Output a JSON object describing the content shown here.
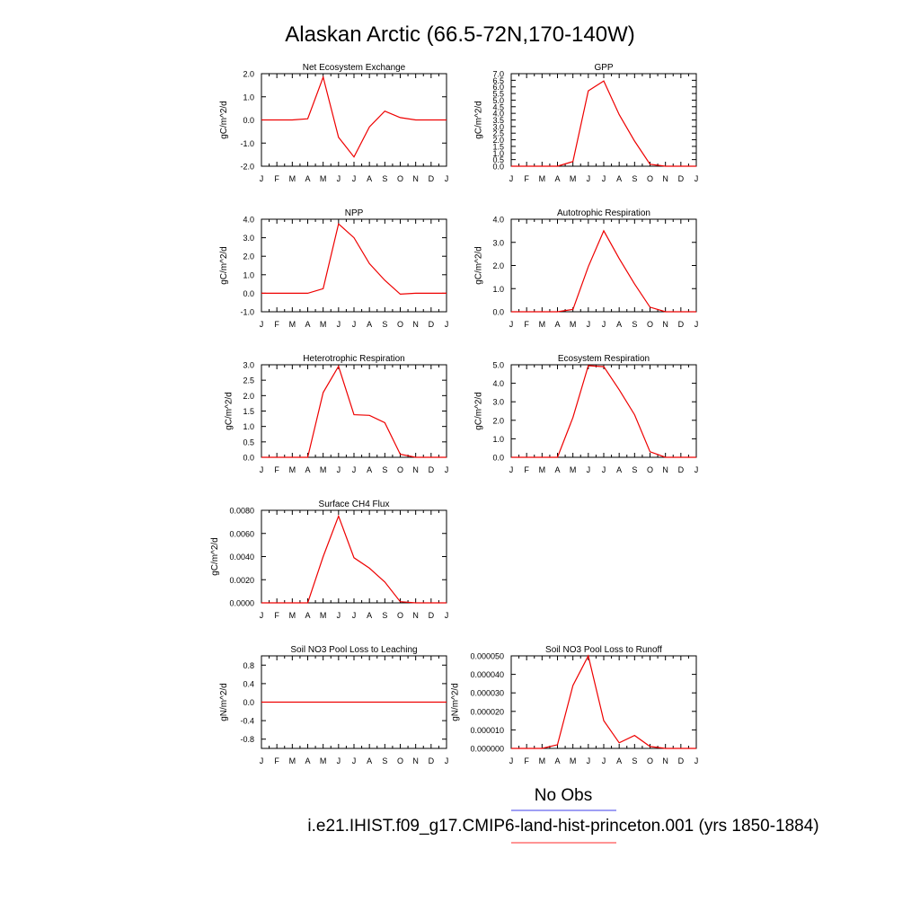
{
  "figure": {
    "title": "Alaskan Arctic (66.5-72N,170-140W)",
    "legend": {
      "obs_label": "No Obs",
      "obs_color": "#6666ee",
      "model_label": "i.e21.IHIST.f09_g17.CMIP6-land-hist-princeton.001 (yrs 1850-1884)",
      "model_color": "#ff5555"
    }
  },
  "chart_data": [
    {
      "type": "line",
      "title": "Net Ecosystem Exchange",
      "ylabel": "gC/m^2/d",
      "x": [
        "J",
        "F",
        "M",
        "A",
        "M",
        "J",
        "J",
        "A",
        "S",
        "O",
        "N",
        "D",
        "J"
      ],
      "ylim": [
        -2.0,
        2.0
      ],
      "yticks": [
        -2.0,
        -1.0,
        0.0,
        1.0,
        2.0
      ],
      "ytick_labels": [
        "-2.0",
        "-1.0",
        "0.0",
        "1.0",
        "2.0"
      ],
      "series": [
        {
          "color": "#ee0000",
          "values": [
            0.0,
            0.0,
            0.0,
            0.05,
            1.85,
            -0.75,
            -1.6,
            -0.3,
            0.38,
            0.1,
            0.0,
            0.0,
            0.0
          ]
        }
      ]
    },
    {
      "type": "line",
      "title": "GPP",
      "ylabel": "gC/m^2/d",
      "x": [
        "J",
        "F",
        "M",
        "A",
        "M",
        "J",
        "J",
        "A",
        "S",
        "O",
        "N",
        "D",
        "J"
      ],
      "ylim": [
        0.0,
        7.0
      ],
      "yticks": [
        0.0,
        0.5,
        1.0,
        1.5,
        2.0,
        2.5,
        3.0,
        3.5,
        4.0,
        4.5,
        5.0,
        5.5,
        6.0,
        6.5,
        7.0
      ],
      "ytick_labels": [
        "0.0",
        "0.5",
        "1.0",
        "1.5",
        "2.0",
        "2.5",
        "3.0",
        "3.5",
        "4.0",
        "4.5",
        "5.0",
        "5.5",
        "6.0",
        "6.5",
        "7.0"
      ],
      "series": [
        {
          "color": "#ee0000",
          "values": [
            0.0,
            0.0,
            0.0,
            0.0,
            0.35,
            5.7,
            6.45,
            3.9,
            1.9,
            0.15,
            0.0,
            0.0,
            0.0
          ]
        }
      ]
    },
    {
      "type": "line",
      "title": "NPP",
      "ylabel": "gC/m^2/d",
      "x": [
        "J",
        "F",
        "M",
        "A",
        "M",
        "J",
        "J",
        "A",
        "S",
        "O",
        "N",
        "D",
        "J"
      ],
      "ylim": [
        -1.0,
        4.0
      ],
      "yticks": [
        -1.0,
        0.0,
        1.0,
        2.0,
        3.0,
        4.0
      ],
      "ytick_labels": [
        "-1.0",
        "0.0",
        "1.0",
        "2.0",
        "3.0",
        "4.0"
      ],
      "series": [
        {
          "color": "#ee0000",
          "values": [
            0.0,
            0.0,
            0.0,
            0.0,
            0.25,
            3.75,
            3.0,
            1.6,
            0.7,
            -0.05,
            0.0,
            0.0,
            0.0
          ]
        }
      ]
    },
    {
      "type": "line",
      "title": "Autotrophic Respiration",
      "ylabel": "gC/m^2/d",
      "x": [
        "J",
        "F",
        "M",
        "A",
        "M",
        "J",
        "J",
        "A",
        "S",
        "O",
        "N",
        "D",
        "J"
      ],
      "ylim": [
        0.0,
        4.0
      ],
      "yticks": [
        0.0,
        1.0,
        2.0,
        3.0,
        4.0
      ],
      "ytick_labels": [
        "0.0",
        "1.0",
        "2.0",
        "3.0",
        "4.0"
      ],
      "series": [
        {
          "color": "#ee0000",
          "values": [
            0.0,
            0.0,
            0.0,
            0.0,
            0.1,
            1.95,
            3.5,
            2.3,
            1.2,
            0.2,
            0.0,
            0.0,
            0.0
          ]
        }
      ]
    },
    {
      "type": "line",
      "title": "Heterotrophic Respiration",
      "ylabel": "gC/m^2/d",
      "x": [
        "J",
        "F",
        "M",
        "A",
        "M",
        "J",
        "J",
        "A",
        "S",
        "O",
        "N",
        "D",
        "J"
      ],
      "ylim": [
        0.0,
        3.0
      ],
      "yticks": [
        0.0,
        0.5,
        1.0,
        1.5,
        2.0,
        2.5,
        3.0
      ],
      "ytick_labels": [
        "0.0",
        "0.5",
        "1.0",
        "1.5",
        "2.0",
        "2.5",
        "3.0"
      ],
      "series": [
        {
          "color": "#ee0000",
          "values": [
            0.0,
            0.0,
            0.0,
            0.0,
            2.1,
            2.95,
            1.38,
            1.36,
            1.12,
            0.1,
            0.0,
            0.0,
            0.0
          ]
        }
      ]
    },
    {
      "type": "line",
      "title": "Ecosystem Respiration",
      "ylabel": "gC/m^2/d",
      "x": [
        "J",
        "F",
        "M",
        "A",
        "M",
        "J",
        "J",
        "A",
        "S",
        "O",
        "N",
        "D",
        "J"
      ],
      "ylim": [
        0.0,
        5.0
      ],
      "yticks": [
        0.0,
        1.0,
        2.0,
        3.0,
        4.0,
        5.0
      ],
      "ytick_labels": [
        "0.0",
        "1.0",
        "2.0",
        "3.0",
        "4.0",
        "5.0"
      ],
      "series": [
        {
          "color": "#ee0000",
          "values": [
            0.0,
            0.0,
            0.0,
            0.0,
            2.15,
            4.95,
            4.9,
            3.65,
            2.3,
            0.3,
            0.0,
            0.0,
            0.0
          ]
        }
      ]
    },
    {
      "type": "line",
      "title": "Surface CH4 Flux",
      "ylabel": "gC/m^2/d",
      "x": [
        "J",
        "F",
        "M",
        "A",
        "M",
        "J",
        "J",
        "A",
        "S",
        "O",
        "N",
        "D",
        "J"
      ],
      "ylim": [
        0.0,
        0.008
      ],
      "yticks": [
        0.0,
        0.002,
        0.004,
        0.006,
        0.008
      ],
      "ytick_labels": [
        "0.0000",
        "0.0020",
        "0.0040",
        "0.0060",
        "0.0080"
      ],
      "series": [
        {
          "color": "#ee0000",
          "values": [
            0.0,
            0.0,
            0.0,
            0.0,
            0.004,
            0.0075,
            0.0039,
            0.003,
            0.0018,
            0.0001,
            0.0,
            0.0,
            0.0
          ]
        }
      ]
    },
    {
      "type": "line",
      "title": "Soil NO3 Pool Loss to Leaching",
      "ylabel": "gN/m^2/d",
      "x": [
        "J",
        "F",
        "M",
        "A",
        "M",
        "J",
        "J",
        "A",
        "S",
        "O",
        "N",
        "D",
        "J"
      ],
      "ylim": [
        -1.0,
        1.0
      ],
      "yticks": [
        -0.8,
        -0.4,
        0.0,
        0.4,
        0.8
      ],
      "ytick_labels": [
        "-0.8",
        "-0.4",
        "0.0",
        "0.4",
        "0.8"
      ],
      "series": [
        {
          "color": "#ee0000",
          "values": [
            0.0,
            0.0,
            0.0,
            0.0,
            0.0,
            0.0,
            0.0,
            0.0,
            0.0,
            0.0,
            0.0,
            0.0,
            0.0
          ]
        }
      ]
    },
    {
      "type": "line",
      "title": "Soil NO3 Pool Loss to Runoff",
      "ylabel": "gN/m^2/d",
      "x": [
        "J",
        "F",
        "M",
        "A",
        "M",
        "J",
        "J",
        "A",
        "S",
        "O",
        "N",
        "D",
        "J"
      ],
      "ylim": [
        0.0,
        5e-05
      ],
      "yticks": [
        0.0,
        1e-05,
        2e-05,
        3e-05,
        4e-05,
        5e-05
      ],
      "ytick_labels": [
        "0.000000",
        "0.000010",
        "0.000020",
        "0.000030",
        "0.000040",
        "0.000050"
      ],
      "series": [
        {
          "color": "#ee0000",
          "values": [
            0.0,
            0.0,
            0.0,
            2e-06,
            3.4e-05,
            5e-05,
            1.5e-05,
            3e-06,
            7e-06,
            1e-06,
            0.0,
            0.0,
            0.0
          ]
        }
      ]
    }
  ]
}
